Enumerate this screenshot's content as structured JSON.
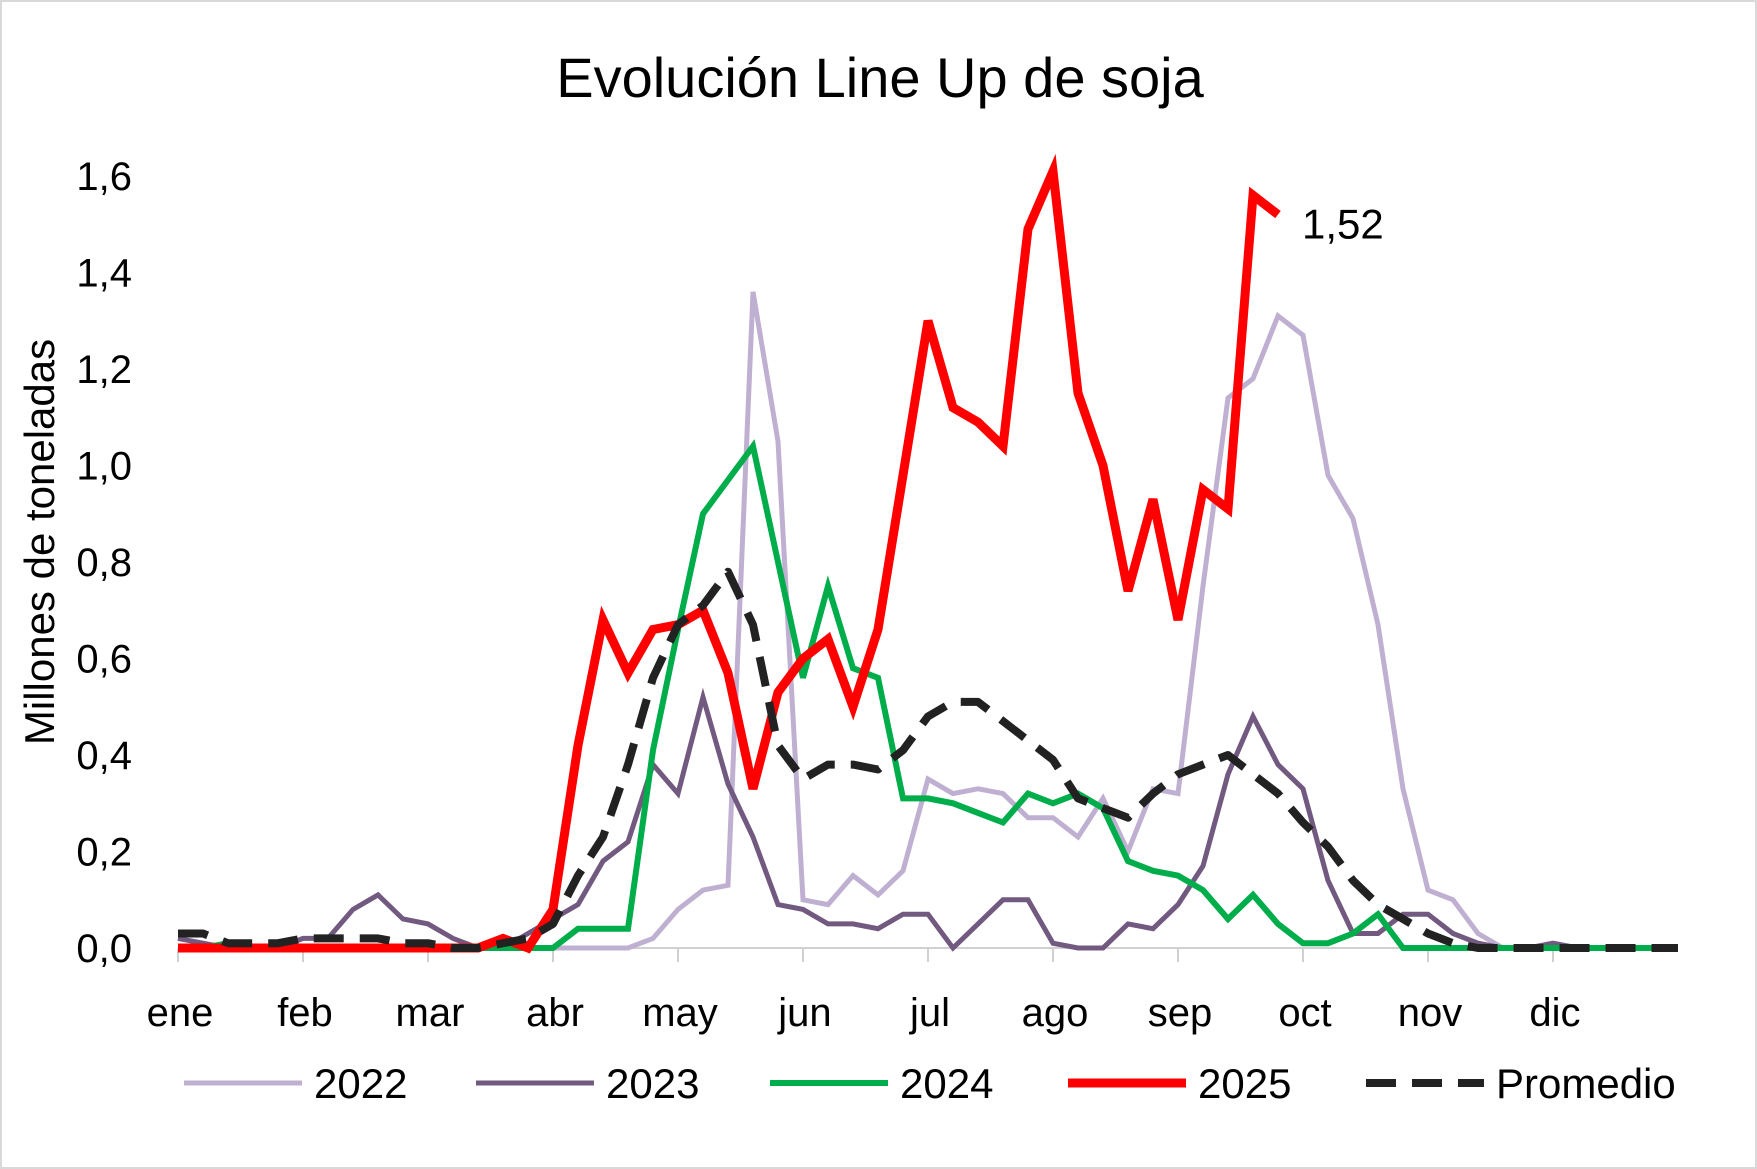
{
  "chart_data": {
    "type": "line",
    "title": "Evolución Line Up de soja",
    "xlabel": "",
    "ylabel": "Millones de toneladas",
    "ylim": [
      0,
      1.6
    ],
    "yticks": [
      {
        "value": 0.0,
        "label": "0,0"
      },
      {
        "value": 0.2,
        "label": "0,2"
      },
      {
        "value": 0.4,
        "label": "0,4"
      },
      {
        "value": 0.6,
        "label": "0,6"
      },
      {
        "value": 0.8,
        "label": "0,8"
      },
      {
        "value": 1.0,
        "label": "1,0"
      },
      {
        "value": 1.2,
        "label": "1,2"
      },
      {
        "value": 1.4,
        "label": "1,4"
      },
      {
        "value": 1.6,
        "label": "1,6"
      }
    ],
    "xlim": [
      0,
      60
    ],
    "x_unit": "week index (approx. 5 per month)",
    "month_ticks": [
      {
        "x": 0,
        "label": "ene"
      },
      {
        "x": 5,
        "label": "feb"
      },
      {
        "x": 10,
        "label": "mar"
      },
      {
        "x": 15,
        "label": "abr"
      },
      {
        "x": 20,
        "label": "may"
      },
      {
        "x": 25,
        "label": "jun"
      },
      {
        "x": 30,
        "label": "jul"
      },
      {
        "x": 35,
        "label": "ago"
      },
      {
        "x": 40,
        "label": "sep"
      },
      {
        "x": 45,
        "label": "oct"
      },
      {
        "x": 50,
        "label": "nov"
      },
      {
        "x": 55,
        "label": "dic"
      }
    ],
    "grid": false,
    "legend": "bottom",
    "end_label": {
      "series": "2025",
      "text": "1,52"
    },
    "series": [
      {
        "name": "2022",
        "color": "#bfb0d2",
        "style": "solid",
        "width": 5,
        "points": [
          [
            0,
            0
          ],
          [
            1,
            0
          ],
          [
            2,
            0
          ],
          [
            3,
            0
          ],
          [
            4,
            0
          ],
          [
            5,
            0
          ],
          [
            6,
            0
          ],
          [
            7,
            0
          ],
          [
            8,
            0
          ],
          [
            9,
            0
          ],
          [
            10,
            0
          ],
          [
            11,
            0
          ],
          [
            12,
            0
          ],
          [
            13,
            0
          ],
          [
            14,
            0
          ],
          [
            15,
            0
          ],
          [
            16,
            0
          ],
          [
            17,
            0
          ],
          [
            18,
            0
          ],
          [
            19,
            0.02
          ],
          [
            20,
            0.08
          ],
          [
            21,
            0.12
          ],
          [
            22,
            0.13
          ],
          [
            23,
            1.36
          ],
          [
            24,
            1.05
          ],
          [
            25,
            0.1
          ],
          [
            26,
            0.09
          ],
          [
            27,
            0.15
          ],
          [
            28,
            0.11
          ],
          [
            29,
            0.16
          ],
          [
            30,
            0.35
          ],
          [
            31,
            0.32
          ],
          [
            32,
            0.33
          ],
          [
            33,
            0.32
          ],
          [
            34,
            0.27
          ],
          [
            35,
            0.27
          ],
          [
            36,
            0.23
          ],
          [
            37,
            0.31
          ],
          [
            38,
            0.2
          ],
          [
            39,
            0.33
          ],
          [
            40,
            0.32
          ],
          [
            41,
            0.75
          ],
          [
            42,
            1.14
          ],
          [
            43,
            1.18
          ],
          [
            44,
            1.31
          ],
          [
            45,
            1.27
          ],
          [
            46,
            0.98
          ],
          [
            47,
            0.89
          ],
          [
            48,
            0.67
          ],
          [
            49,
            0.33
          ],
          [
            50,
            0.12
          ],
          [
            51,
            0.1
          ],
          [
            52,
            0.03
          ],
          [
            53,
            0
          ],
          [
            54,
            0
          ],
          [
            55,
            0
          ],
          [
            56,
            0
          ],
          [
            57,
            0
          ],
          [
            58,
            0
          ],
          [
            59,
            0
          ],
          [
            60,
            0
          ]
        ]
      },
      {
        "name": "2023",
        "color": "#71597f",
        "style": "solid",
        "width": 5,
        "points": [
          [
            0,
            0.02
          ],
          [
            1,
            0.01
          ],
          [
            2,
            0
          ],
          [
            3,
            0
          ],
          [
            4,
            0
          ],
          [
            5,
            0.02
          ],
          [
            6,
            0.02
          ],
          [
            7,
            0.08
          ],
          [
            8,
            0.11
          ],
          [
            9,
            0.06
          ],
          [
            10,
            0.05
          ],
          [
            11,
            0.02
          ],
          [
            12,
            0
          ],
          [
            13,
            0
          ],
          [
            14,
            0.03
          ],
          [
            15,
            0.06
          ],
          [
            16,
            0.09
          ],
          [
            17,
            0.18
          ],
          [
            18,
            0.22
          ],
          [
            19,
            0.38
          ],
          [
            20,
            0.32
          ],
          [
            21,
            0.52
          ],
          [
            22,
            0.34
          ],
          [
            23,
            0.23
          ],
          [
            24,
            0.09
          ],
          [
            25,
            0.08
          ],
          [
            26,
            0.05
          ],
          [
            27,
            0.05
          ],
          [
            28,
            0.04
          ],
          [
            29,
            0.07
          ],
          [
            30,
            0.07
          ],
          [
            31,
            0
          ],
          [
            32,
            0.05
          ],
          [
            33,
            0.1
          ],
          [
            34,
            0.1
          ],
          [
            35,
            0.01
          ],
          [
            36,
            0
          ],
          [
            37,
            0
          ],
          [
            38,
            0.05
          ],
          [
            39,
            0.04
          ],
          [
            40,
            0.09
          ],
          [
            41,
            0.17
          ],
          [
            42,
            0.36
          ],
          [
            43,
            0.48
          ],
          [
            44,
            0.38
          ],
          [
            45,
            0.33
          ],
          [
            46,
            0.14
          ],
          [
            47,
            0.03
          ],
          [
            48,
            0.03
          ],
          [
            49,
            0.07
          ],
          [
            50,
            0.07
          ],
          [
            51,
            0.03
          ],
          [
            52,
            0.01
          ],
          [
            53,
            0
          ],
          [
            54,
            0
          ],
          [
            55,
            0.01
          ],
          [
            56,
            0
          ],
          [
            57,
            0
          ],
          [
            58,
            0
          ],
          [
            59,
            0
          ],
          [
            60,
            0
          ]
        ]
      },
      {
        "name": "2024",
        "color": "#00ad4b",
        "style": "solid",
        "width": 6,
        "points": [
          [
            0,
            0
          ],
          [
            1,
            0
          ],
          [
            2,
            0.01
          ],
          [
            3,
            0
          ],
          [
            4,
            0
          ],
          [
            5,
            0
          ],
          [
            6,
            0
          ],
          [
            7,
            0
          ],
          [
            8,
            0
          ],
          [
            9,
            0
          ],
          [
            10,
            0
          ],
          [
            11,
            0
          ],
          [
            12,
            0
          ],
          [
            13,
            0
          ],
          [
            14,
            0
          ],
          [
            15,
            0
          ],
          [
            16,
            0.04
          ],
          [
            17,
            0.04
          ],
          [
            18,
            0.04
          ],
          [
            19,
            0.41
          ],
          [
            20,
            0.66
          ],
          [
            21,
            0.9
          ],
          [
            22,
            0.97
          ],
          [
            23,
            1.04
          ],
          [
            24,
            0.8
          ],
          [
            25,
            0.56
          ],
          [
            26,
            0.75
          ],
          [
            27,
            0.58
          ],
          [
            28,
            0.56
          ],
          [
            29,
            0.31
          ],
          [
            30,
            0.31
          ],
          [
            31,
            0.3
          ],
          [
            32,
            0.28
          ],
          [
            33,
            0.26
          ],
          [
            34,
            0.32
          ],
          [
            35,
            0.3
          ],
          [
            36,
            0.32
          ],
          [
            37,
            0.29
          ],
          [
            38,
            0.18
          ],
          [
            39,
            0.16
          ],
          [
            40,
            0.15
          ],
          [
            41,
            0.12
          ],
          [
            42,
            0.06
          ],
          [
            43,
            0.11
          ],
          [
            44,
            0.05
          ],
          [
            45,
            0.01
          ],
          [
            46,
            0.01
          ],
          [
            47,
            0.03
          ],
          [
            48,
            0.07
          ],
          [
            49,
            0
          ],
          [
            50,
            0
          ],
          [
            51,
            0
          ],
          [
            52,
            0
          ],
          [
            53,
            0
          ],
          [
            54,
            0
          ],
          [
            55,
            0
          ],
          [
            56,
            0
          ],
          [
            57,
            0
          ],
          [
            58,
            0
          ],
          [
            59,
            0
          ],
          [
            60,
            0
          ]
        ]
      },
      {
        "name": "2025",
        "color": "#ff0000",
        "style": "solid",
        "width": 9,
        "points": [
          [
            0,
            0
          ],
          [
            1,
            0
          ],
          [
            2,
            0
          ],
          [
            3,
            0
          ],
          [
            4,
            0
          ],
          [
            5,
            0
          ],
          [
            6,
            0
          ],
          [
            7,
            0
          ],
          [
            8,
            0
          ],
          [
            9,
            0
          ],
          [
            10,
            0
          ],
          [
            11,
            0
          ],
          [
            12,
            0
          ],
          [
            13,
            0.02
          ],
          [
            14,
            0
          ],
          [
            15,
            0.08
          ],
          [
            16,
            0.42
          ],
          [
            17,
            0.68
          ],
          [
            18,
            0.57
          ],
          [
            19,
            0.66
          ],
          [
            20,
            0.67
          ],
          [
            21,
            0.7
          ],
          [
            22,
            0.57
          ],
          [
            23,
            0.33
          ],
          [
            24,
            0.53
          ],
          [
            25,
            0.6
          ],
          [
            26,
            0.64
          ],
          [
            27,
            0.5
          ],
          [
            28,
            0.66
          ],
          [
            29,
            0.98
          ],
          [
            30,
            1.3
          ],
          [
            31,
            1.12
          ],
          [
            32,
            1.09
          ],
          [
            33,
            1.04
          ],
          [
            34,
            1.49
          ],
          [
            35,
            1.61
          ],
          [
            36,
            1.15
          ],
          [
            37,
            1.0
          ],
          [
            38,
            0.74
          ],
          [
            39,
            0.93
          ],
          [
            40,
            0.68
          ],
          [
            41,
            0.95
          ],
          [
            42,
            0.91
          ],
          [
            43,
            1.56
          ],
          [
            44,
            1.52
          ]
        ]
      },
      {
        "name": "Promedio",
        "color": "#222222",
        "style": "dashed",
        "width": 8,
        "points": [
          [
            0,
            0.03
          ],
          [
            1,
            0.03
          ],
          [
            2,
            0.01
          ],
          [
            3,
            0.01
          ],
          [
            4,
            0.01
          ],
          [
            5,
            0.02
          ],
          [
            6,
            0.02
          ],
          [
            7,
            0.02
          ],
          [
            8,
            0.02
          ],
          [
            9,
            0.01
          ],
          [
            10,
            0.01
          ],
          [
            11,
            0
          ],
          [
            12,
            0
          ],
          [
            13,
            0.01
          ],
          [
            14,
            0.02
          ],
          [
            15,
            0.05
          ],
          [
            16,
            0.15
          ],
          [
            17,
            0.23
          ],
          [
            18,
            0.38
          ],
          [
            19,
            0.56
          ],
          [
            20,
            0.67
          ],
          [
            21,
            0.71
          ],
          [
            22,
            0.78
          ],
          [
            23,
            0.67
          ],
          [
            24,
            0.42
          ],
          [
            25,
            0.35
          ],
          [
            26,
            0.38
          ],
          [
            27,
            0.38
          ],
          [
            28,
            0.37
          ],
          [
            29,
            0.41
          ],
          [
            30,
            0.48
          ],
          [
            31,
            0.51
          ],
          [
            32,
            0.51
          ],
          [
            33,
            0.47
          ],
          [
            34,
            0.43
          ],
          [
            35,
            0.39
          ],
          [
            36,
            0.31
          ],
          [
            37,
            0.29
          ],
          [
            38,
            0.27
          ],
          [
            39,
            0.32
          ],
          [
            40,
            0.36
          ],
          [
            41,
            0.38
          ],
          [
            42,
            0.4
          ],
          [
            43,
            0.36
          ],
          [
            44,
            0.32
          ],
          [
            45,
            0.26
          ],
          [
            46,
            0.21
          ],
          [
            47,
            0.14
          ],
          [
            48,
            0.09
          ],
          [
            49,
            0.06
          ],
          [
            50,
            0.03
          ],
          [
            51,
            0.01
          ],
          [
            52,
            0
          ],
          [
            53,
            0
          ],
          [
            54,
            0
          ],
          [
            55,
            0
          ],
          [
            56,
            0
          ],
          [
            57,
            0
          ],
          [
            58,
            0
          ],
          [
            59,
            0
          ],
          [
            60,
            0
          ]
        ]
      }
    ]
  }
}
